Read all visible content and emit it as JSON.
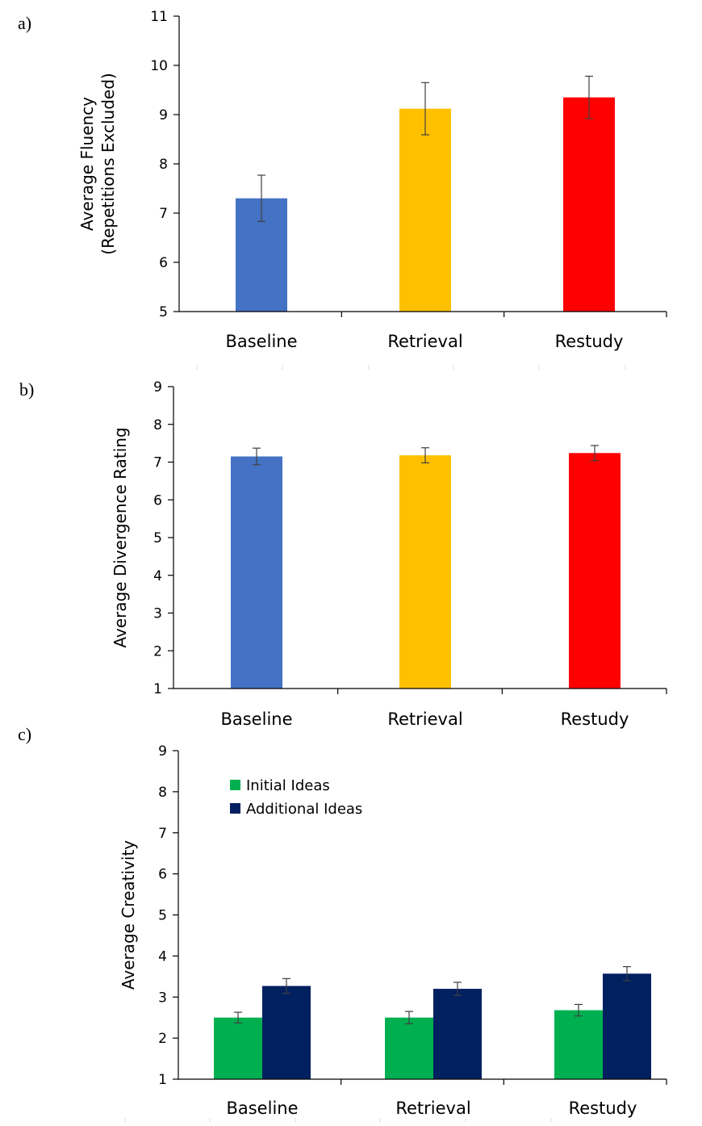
{
  "chart_data": [
    {
      "type": "bar",
      "panel_label": "a)",
      "categories": [
        "Baseline",
        "Retrieval",
        "Restudy"
      ],
      "values": [
        7.3,
        9.12,
        9.35
      ],
      "errors": [
        0.47,
        0.53,
        0.43
      ],
      "bar_colors": [
        "#4472C4",
        "#FFC000",
        "#FF0000"
      ],
      "ylabel_lines": [
        "Average Fluency",
        "(Repetitions Excluded)"
      ],
      "ylim": [
        5,
        11
      ],
      "yticks": [
        5,
        6,
        7,
        8,
        9,
        10,
        11
      ],
      "grid": false,
      "legend": null
    },
    {
      "type": "bar",
      "panel_label": "b)",
      "categories": [
        "Baseline",
        "Retrieval",
        "Restudy"
      ],
      "values": [
        7.15,
        7.18,
        7.24
      ],
      "errors": [
        0.22,
        0.2,
        0.2
      ],
      "bar_colors": [
        "#4472C4",
        "#FFC000",
        "#FF0000"
      ],
      "ylabel_lines": [
        "Average Divergence Rating"
      ],
      "ylim": [
        1,
        9
      ],
      "yticks": [
        1,
        2,
        3,
        4,
        5,
        6,
        7,
        8,
        9
      ],
      "grid": false,
      "legend": null
    },
    {
      "type": "bar",
      "panel_label": "c)",
      "categories": [
        "Baseline",
        "Retrieval",
        "Restudy"
      ],
      "series": [
        {
          "name": "Initial Ideas",
          "values": [
            2.5,
            2.5,
            2.68
          ],
          "errors": [
            0.13,
            0.15,
            0.14
          ],
          "color": "#00B050"
        },
        {
          "name": "Additional Ideas",
          "values": [
            3.27,
            3.2,
            3.57
          ],
          "errors": [
            0.18,
            0.16,
            0.17
          ],
          "color": "#002060"
        }
      ],
      "ylabel_lines": [
        "Average Creativity"
      ],
      "ylim": [
        1,
        9
      ],
      "yticks": [
        1,
        2,
        3,
        4,
        5,
        6,
        7,
        8,
        9
      ],
      "grid": false,
      "legend": "top-left"
    }
  ]
}
